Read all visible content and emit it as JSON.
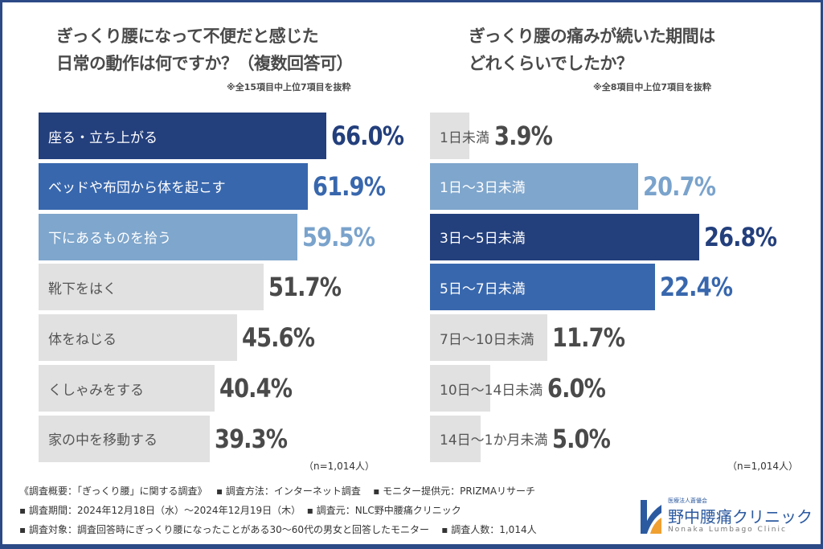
{
  "colors": {
    "dark": "#233f7c",
    "mid": "#3867ad",
    "light": "#7fa6cc",
    "gray": "#e1e1e1",
    "text": "#4a4a4a",
    "frame": "#2c4a86"
  },
  "chart_data": [
    {
      "type": "bar",
      "orientation": "horizontal",
      "title": [
        "ぎっくり腰になって不便だと感じた",
        "日常の動作は何ですか？（複数回答可）"
      ],
      "note": "※全15項目中上位7項目を抜粋",
      "n_label": "（n=1,014人）",
      "unit": "%",
      "categories": [
        "座る・立ち上がる",
        "ベッドや布団から体を起こす",
        "下にあるものを拾う",
        "靴下をはく",
        "体をねじる",
        "くしゃみをする",
        "家の中を移動する"
      ],
      "values": [
        66.0,
        61.9,
        59.5,
        51.7,
        45.6,
        40.4,
        39.3
      ],
      "highlight": [
        "dark",
        "mid",
        "light",
        "gray",
        "gray",
        "gray",
        "gray"
      ]
    },
    {
      "type": "bar",
      "orientation": "horizontal",
      "title": [
        "ぎっくり腰の痛みが続いた期間は",
        "どれくらいでしたか？"
      ],
      "note": "※全8項目中上位7項目を抜粋",
      "n_label": "（n=1,014人）",
      "unit": "%",
      "categories": [
        "1日未満",
        "1日～3日未満",
        "3日～5日未満",
        "5日～7日未満",
        "7日～10日未満",
        "10日～14日未満",
        "14日～1か月未満"
      ],
      "values": [
        3.9,
        20.7,
        26.8,
        22.4,
        11.7,
        6.0,
        5.0
      ],
      "highlight": [
        "gray",
        "light",
        "dark",
        "mid",
        "gray",
        "gray",
        "gray"
      ]
    }
  ],
  "footer": {
    "line1a": "《調査概要：「ぎっくり腰」に関する調査》",
    "line1b": "▪ 調査方法：インターネット調査",
    "line1c": "▪ モニター提供元：PRIZMAリサーチ",
    "line2a": "▪ 調査期間：2024年12月18日（水）～2024年12月19日（木）",
    "line2b": "▪ 調査元：NLC野中腰痛クリニック",
    "line3a": "▪ 調査対象：調査回答時にぎっくり腰になったことがある30～60代の男女と回答したモニター",
    "line3b": "▪ 調査人数：1,014人"
  },
  "logo": {
    "org": "医療法人蒼優会",
    "name": "野中腰痛クリニック",
    "en": "Nonaka Lumbago Clinic"
  }
}
